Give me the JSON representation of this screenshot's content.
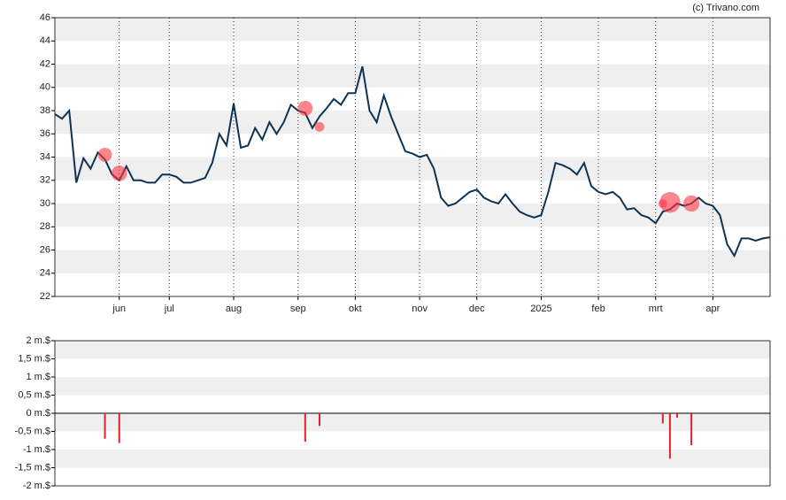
{
  "credit": "(c) Trivano.com",
  "chart_data": [
    {
      "type": "line",
      "categories": [
        null,
        null,
        null,
        null,
        null,
        null,
        null,
        null,
        null,
        "jun",
        null,
        null,
        null,
        null,
        null,
        null,
        "jul",
        null,
        null,
        null,
        null,
        null,
        null,
        null,
        null,
        "aug",
        null,
        null,
        null,
        null,
        null,
        null,
        null,
        null,
        "sep",
        null,
        null,
        null,
        null,
        null,
        null,
        null,
        "okt",
        null,
        null,
        null,
        null,
        null,
        null,
        null,
        null,
        "nov",
        null,
        null,
        null,
        null,
        null,
        null,
        null,
        "dec",
        null,
        null,
        null,
        null,
        null,
        null,
        null,
        null,
        "2025",
        null,
        null,
        null,
        null,
        null,
        null,
        null,
        "feb",
        null,
        null,
        null,
        null,
        null,
        null,
        null,
        "mrt",
        null,
        null,
        null,
        null,
        null,
        null,
        null,
        "apr",
        null,
        null,
        null,
        null,
        null,
        null,
        null,
        null
      ],
      "series": [
        {
          "color": "#0d3354",
          "values": [
            37.7,
            37.3,
            38.0,
            31.8,
            33.9,
            33.0,
            34.4,
            33.8,
            32.5,
            32.0,
            33.2,
            32.0,
            32.0,
            31.8,
            31.8,
            32.5,
            32.5,
            32.3,
            31.8,
            31.8,
            32.0,
            32.2,
            33.5,
            36.0,
            35.0,
            38.6,
            34.8,
            35.0,
            36.5,
            35.5,
            37.0,
            36.0,
            37.0,
            38.5,
            38.0,
            37.8,
            36.5,
            37.5,
            38.2,
            39.0,
            38.5,
            39.5,
            39.5,
            41.8,
            38.0,
            37.0,
            39.3,
            37.5,
            36.0,
            34.5,
            34.3,
            34.0,
            34.2,
            33.0,
            30.5,
            29.8,
            30.0,
            30.5,
            31.0,
            31.2,
            30.5,
            30.2,
            30.0,
            30.8,
            30.0,
            29.3,
            29.0,
            28.8,
            29.0,
            31.0,
            33.5,
            33.3,
            33.0,
            32.5,
            33.5,
            31.5,
            31.0,
            30.8,
            31.0,
            30.5,
            29.5,
            29.6,
            29.0,
            28.8,
            28.3,
            29.3,
            29.5,
            30.0,
            29.8,
            30.0,
            30.5,
            30.0,
            29.8,
            29.0,
            26.5,
            25.5,
            27.0,
            27.0,
            26.8,
            27.0,
            27.1
          ]
        },
        {
          "color": "#ff3344",
          "values": [
            null,
            null,
            null,
            null,
            null,
            null,
            null,
            34.2,
            null,
            32.6,
            null,
            null,
            null,
            null,
            null,
            null,
            null,
            null,
            null,
            null,
            null,
            null,
            null,
            null,
            null,
            null,
            null,
            null,
            null,
            null,
            null,
            null,
            null,
            null,
            null,
            38.2,
            null,
            36.6,
            null,
            null,
            null,
            null,
            null,
            null,
            null,
            null,
            null,
            null,
            null,
            null,
            null,
            null,
            null,
            null,
            null,
            null,
            null,
            null,
            null,
            null,
            null,
            null,
            null,
            null,
            null,
            null,
            null,
            null,
            null,
            null,
            null,
            null,
            null,
            null,
            null,
            null,
            null,
            null,
            null,
            null,
            null,
            null,
            null,
            null,
            null,
            30.0,
            30.1,
            null,
            null,
            30.0,
            null,
            null,
            null,
            null,
            null,
            null,
            null,
            null,
            null,
            null,
            null
          ]
        }
      ],
      "ylim": [
        22,
        46
      ],
      "yticks": [
        22,
        24,
        26,
        28,
        30,
        32,
        34,
        36,
        38,
        40,
        42,
        44,
        46
      ],
      "grid": true
    },
    {
      "type": "bar",
      "color": "#e0202a",
      "values": [
        null,
        null,
        null,
        null,
        null,
        null,
        null,
        -0.7,
        null,
        -0.82,
        null,
        null,
        null,
        null,
        null,
        null,
        null,
        null,
        null,
        null,
        null,
        null,
        null,
        null,
        null,
        null,
        null,
        null,
        null,
        null,
        null,
        null,
        null,
        null,
        null,
        -0.78,
        null,
        -0.35,
        null,
        null,
        null,
        null,
        null,
        null,
        null,
        null,
        null,
        null,
        null,
        null,
        null,
        null,
        null,
        null,
        null,
        null,
        null,
        null,
        null,
        null,
        null,
        null,
        null,
        null,
        null,
        null,
        null,
        null,
        null,
        null,
        null,
        null,
        null,
        null,
        null,
        null,
        null,
        null,
        null,
        null,
        null,
        null,
        null,
        null,
        null,
        -0.28,
        -1.25,
        -0.12,
        null,
        -0.88,
        null,
        null,
        null,
        null,
        null,
        null,
        null,
        null,
        null,
        null,
        null
      ],
      "ylim": [
        -2,
        2
      ],
      "yticks": [
        {
          "value": -2,
          "label": "-2 m.$"
        },
        {
          "value": -1.5,
          "label": "-1,5 m.$"
        },
        {
          "value": -1,
          "label": "-1 m.$"
        },
        {
          "value": -0.5,
          "label": "-0,5 m.$"
        },
        {
          "value": 0,
          "label": "0 m.$"
        },
        {
          "value": 0.5,
          "label": "0,5 m.$"
        },
        {
          "value": 1,
          "label": "1 m.$"
        },
        {
          "value": 1.5,
          "label": "1,5 m.$"
        },
        {
          "value": 2,
          "label": "2 m.$"
        }
      ],
      "grid": true
    }
  ]
}
